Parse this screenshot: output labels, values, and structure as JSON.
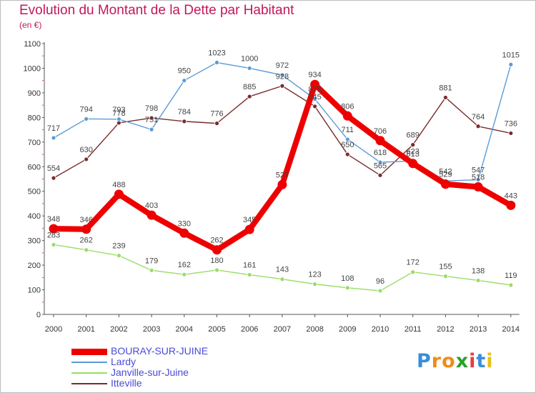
{
  "chart_data": {
    "type": "line",
    "title": "Evolution du Montant de la Dette par Habitant",
    "subtitle": "(en €)",
    "xlabel": "",
    "ylabel": "",
    "categories": [
      "2000",
      "2001",
      "2002",
      "2003",
      "2004",
      "2005",
      "2006",
      "2007",
      "2008",
      "2009",
      "2010",
      "2011",
      "2012",
      "2013",
      "2014"
    ],
    "ylim": [
      0,
      1100
    ],
    "yticks": [
      0,
      100,
      200,
      300,
      400,
      500,
      600,
      700,
      800,
      900,
      1000,
      1100
    ],
    "grid": false,
    "legend_position": "bottom-left",
    "series": [
      {
        "name": "BOURAY-SUR-JUINE",
        "color": "#ee0000",
        "values": [
          348,
          346,
          488,
          403,
          330,
          262,
          345,
          527,
          934,
          806,
          706,
          613,
          529,
          518,
          443
        ]
      },
      {
        "name": "Lardy",
        "color": "#5b9bd5",
        "values": [
          717,
          794,
          793,
          751,
          950,
          1023,
          1000,
          972,
          875,
          711,
          618,
          623,
          542,
          547,
          1015
        ]
      },
      {
        "name": "Janville-sur-Juine",
        "color": "#99dd66",
        "values": [
          283,
          262,
          239,
          179,
          162,
          180,
          161,
          143,
          123,
          108,
          96,
          172,
          155,
          138,
          119
        ]
      },
      {
        "name": "Itteville",
        "color": "#7a2b2b",
        "values": [
          554,
          630,
          778,
          798,
          784,
          776,
          885,
          928,
          845,
          650,
          565,
          689,
          881,
          764,
          736
        ]
      }
    ]
  },
  "logo": {
    "letters": [
      "P",
      "r",
      "o",
      "x",
      "i",
      "t",
      "i"
    ],
    "colors": [
      "#3a8ed8",
      "#f08c1a",
      "#f08c1a",
      "#2aa02a",
      "#e83c3c",
      "#3a8ed8",
      "#e8c21a"
    ]
  }
}
